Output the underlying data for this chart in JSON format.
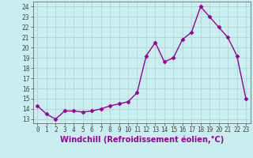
{
  "x": [
    0,
    1,
    2,
    3,
    4,
    5,
    6,
    7,
    8,
    9,
    10,
    11,
    12,
    13,
    14,
    15,
    16,
    17,
    18,
    19,
    20,
    21,
    22,
    23
  ],
  "y": [
    14.3,
    13.5,
    13.0,
    13.8,
    13.8,
    13.7,
    13.8,
    14.0,
    14.3,
    14.5,
    14.7,
    15.6,
    19.2,
    20.5,
    18.6,
    19.0,
    20.8,
    21.5,
    24.0,
    23.0,
    22.0,
    21.0,
    19.2,
    15.0
  ],
  "line_color": "#990099",
  "marker": "D",
  "marker_size": 2.5,
  "xlabel": "Windchill (Refroidissement éolien,°C)",
  "xlabel_fontsize": 7,
  "yticks": [
    13,
    14,
    15,
    16,
    17,
    18,
    19,
    20,
    21,
    22,
    23,
    24
  ],
  "ylim": [
    12.6,
    24.5
  ],
  "xlim": [
    -0.5,
    23.5
  ],
  "xticks": [
    0,
    1,
    2,
    3,
    4,
    5,
    6,
    7,
    8,
    9,
    10,
    11,
    12,
    13,
    14,
    15,
    16,
    17,
    18,
    19,
    20,
    21,
    22,
    23
  ],
  "background_color": "#c8eef0",
  "grid_color": "#aed4d6",
  "tick_fontsize": 5.5,
  "linewidth": 1.0
}
